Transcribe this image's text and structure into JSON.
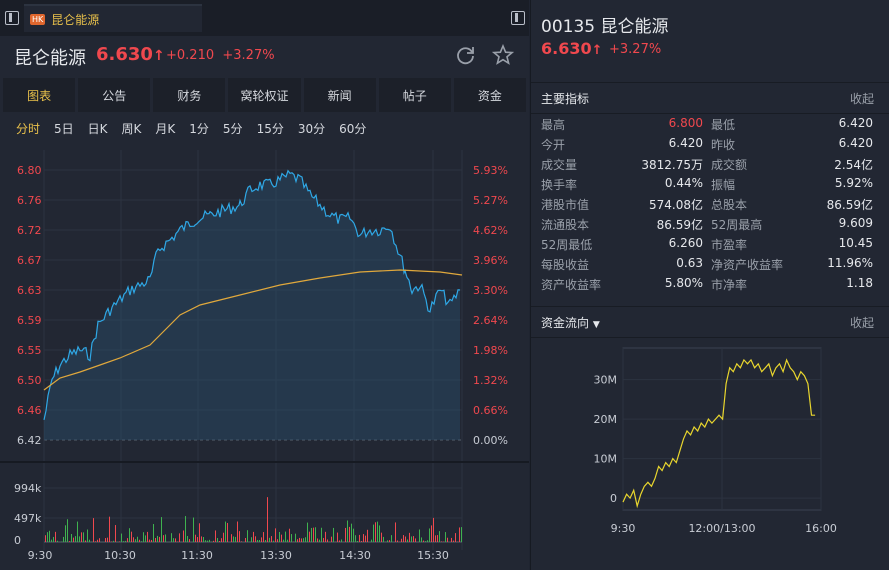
{
  "tab": {
    "market_badge": "HK",
    "name": "昆仑能源"
  },
  "quote": {
    "name": "昆仑能源",
    "price": "6.630",
    "arrow": "↑",
    "change": "+0.210",
    "change_pct": "+3.27%"
  },
  "menu": [
    {
      "label": "图表",
      "active": true
    },
    {
      "label": "公告"
    },
    {
      "label": "财务"
    },
    {
      "label": "窝轮权证"
    },
    {
      "label": "新闻"
    },
    {
      "label": "帖子"
    },
    {
      "label": "资金"
    }
  ],
  "periods": [
    {
      "label": "分时",
      "active": true
    },
    {
      "label": "5日"
    },
    {
      "label": "日K"
    },
    {
      "label": "周K"
    },
    {
      "label": "月K"
    },
    {
      "label": "1分"
    },
    {
      "label": "5分"
    },
    {
      "label": "15分"
    },
    {
      "label": "30分"
    },
    {
      "label": "60分"
    }
  ],
  "intraday_chart": {
    "price_axis": [
      "6.80",
      "6.76",
      "6.72",
      "6.67",
      "6.63",
      "6.59",
      "6.55",
      "6.50",
      "6.46",
      "6.42"
    ],
    "pct_axis": [
      "5.93%",
      "5.27%",
      "4.62%",
      "3.96%",
      "3.30%",
      "2.64%",
      "1.98%",
      "1.32%",
      "0.66%",
      "0.00%"
    ],
    "volume_axis": [
      "994k",
      "497k",
      "0"
    ],
    "time_axis": [
      "9:30",
      "10:30",
      "11:30",
      "13:30",
      "14:30",
      "15:30"
    ],
    "colors": {
      "price_line": "#2fa8e6",
      "avg_line": "#e0a83c",
      "up": "#f0484e",
      "down": "#3fb24f"
    }
  },
  "right_header": {
    "code": "00135",
    "name": "昆仑能源",
    "price": "6.630",
    "arrow": "↑",
    "change_pct": "+3.27%"
  },
  "key_metrics": {
    "title": "主要指标",
    "collapse": "收起",
    "rows": [
      [
        "最高",
        "6.800",
        "最低",
        "6.420"
      ],
      [
        "今开",
        "6.420",
        "昨收",
        "6.420"
      ],
      [
        "成交量",
        "3812.75万",
        "成交额",
        "2.54亿"
      ],
      [
        "换手率",
        "0.44%",
        "振幅",
        "5.92%"
      ],
      [
        "港股市值",
        "574.08亿",
        "总股本",
        "86.59亿"
      ],
      [
        "流通股本",
        "86.59亿",
        "52周最高",
        "9.609"
      ],
      [
        "52周最低",
        "6.260",
        "市盈率",
        "10.45"
      ],
      [
        "每股收益",
        "0.63",
        "净资产收益率",
        "11.96%"
      ],
      [
        "资产收益率",
        "5.80%",
        "市净率",
        "1.18"
      ]
    ]
  },
  "capital_flow": {
    "title": "资金流向",
    "collapse": "收起",
    "chart_data": {
      "type": "line",
      "y_ticks": [
        "30M",
        "20M",
        "10M",
        "0"
      ],
      "x_ticks": [
        "9:30",
        "12:00/13:00",
        "16:00"
      ],
      "ylim": [
        -3,
        38
      ],
      "series": [
        {
          "values": [
            -1,
            1,
            0,
            2,
            -2,
            1,
            3,
            4,
            3,
            5,
            8,
            7,
            9,
            8,
            10,
            9,
            12,
            15,
            17,
            16,
            18,
            17,
            19,
            18,
            20,
            19,
            20,
            21,
            20,
            29,
            33,
            32,
            34,
            33,
            35,
            34,
            35,
            33,
            34,
            32,
            33,
            34,
            31,
            33,
            34,
            32,
            35,
            33,
            32,
            30,
            32,
            31,
            29,
            21,
            21
          ]
        }
      ],
      "color": "#e9d62e"
    }
  }
}
